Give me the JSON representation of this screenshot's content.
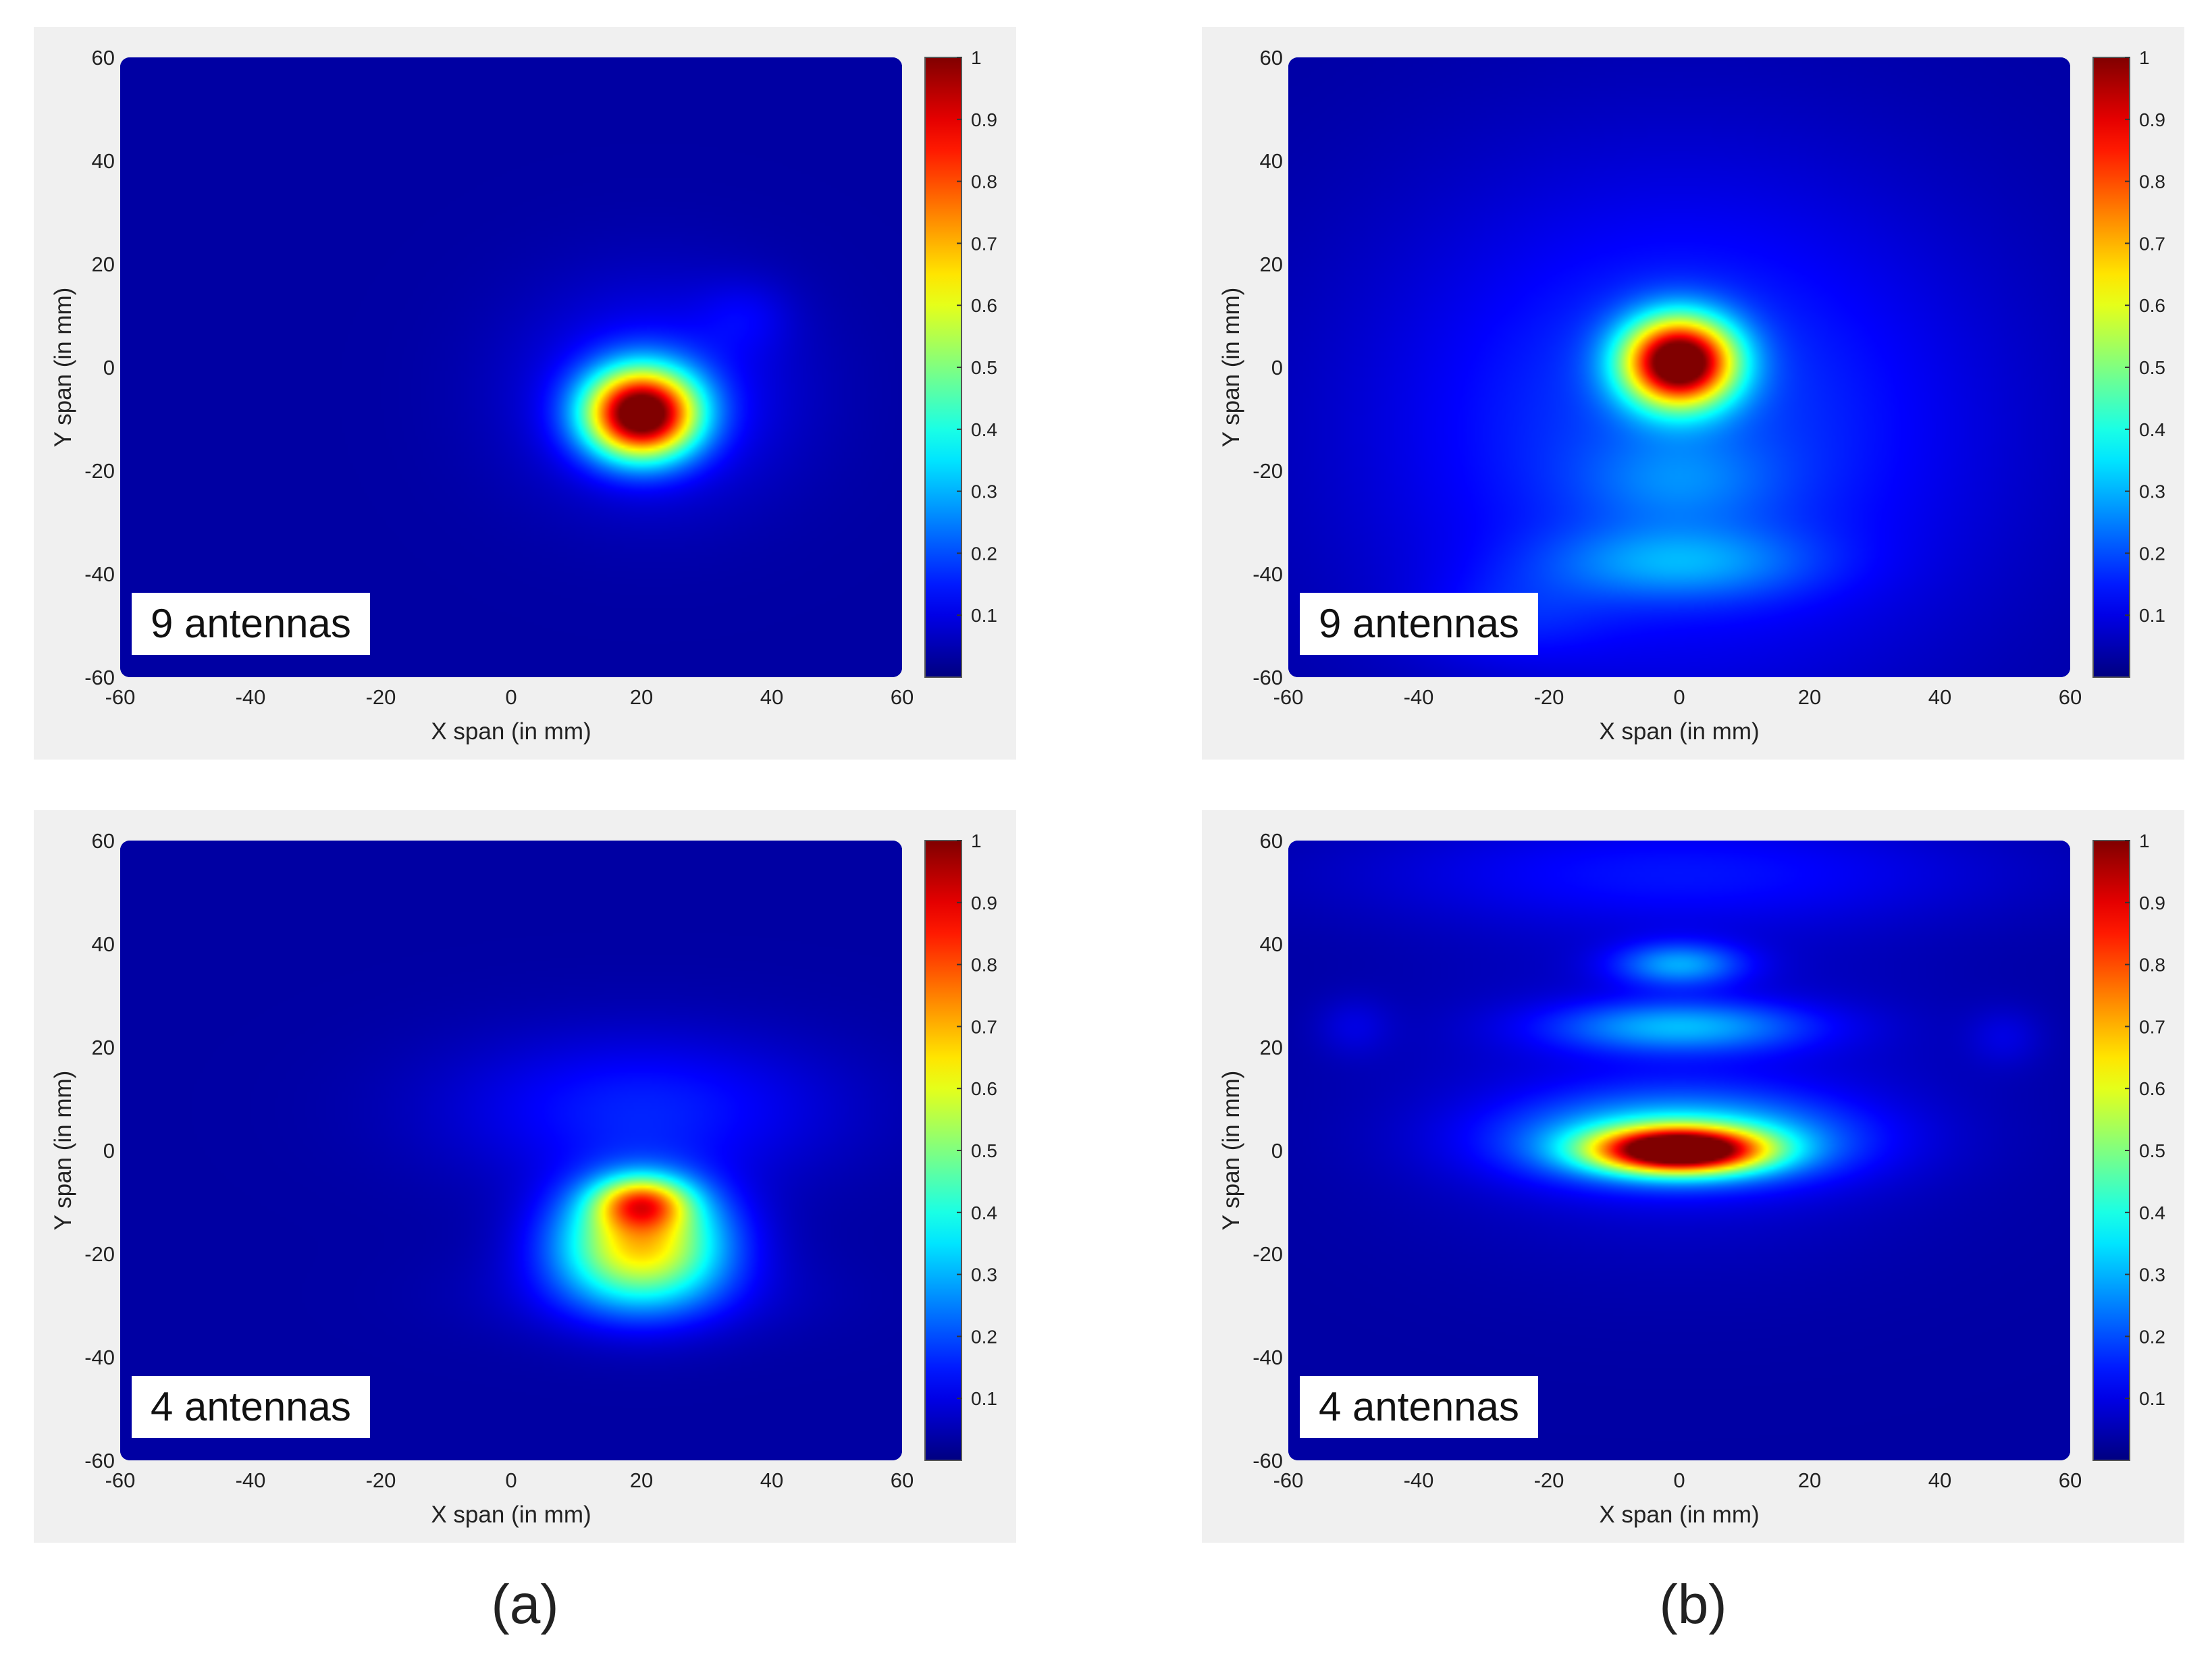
{
  "group_labels": [
    "(a)",
    "(b)"
  ],
  "colorbar": {
    "ticks": [
      0.1,
      0.2,
      0.3,
      0.4,
      0.5,
      0.6,
      0.7,
      0.8,
      0.9,
      1
    ],
    "range": [
      0,
      1
    ],
    "colormap": "jet"
  },
  "chart_data": [
    {
      "type": "heatmap",
      "group": "(a)",
      "annotation": "9 antennas",
      "xlabel": "X span (in mm)",
      "ylabel": "Y span (in mm)",
      "xlim": [
        -60,
        60
      ],
      "ylim": [
        -60,
        60
      ],
      "xticks": [
        -60,
        -40,
        -20,
        0,
        20,
        40,
        60
      ],
      "yticks": [
        -60,
        -40,
        -20,
        0,
        20,
        40,
        60
      ],
      "peak": {
        "x": 20,
        "y": -9,
        "value": 1
      },
      "blobs": [
        {
          "x": 20,
          "y": -9,
          "sx": 6,
          "sy": 6,
          "a": 1.0
        },
        {
          "x": 22,
          "y": -5,
          "sx": 14,
          "sy": 14,
          "a": 0.12
        },
        {
          "x": 36,
          "y": 10,
          "sx": 5,
          "sy": 5,
          "a": 0.05
        }
      ]
    },
    {
      "type": "heatmap",
      "group": "(b)",
      "annotation": "9 antennas",
      "xlabel": "X span (in mm)",
      "ylabel": "Y span (in mm)",
      "xlim": [
        -60,
        60
      ],
      "ylim": [
        -60,
        60
      ],
      "xticks": [
        -60,
        -40,
        -20,
        0,
        20,
        40,
        60
      ],
      "yticks": [
        -60,
        -40,
        -20,
        0,
        20,
        40,
        60
      ],
      "peak": {
        "x": 0,
        "y": 1,
        "value": 1
      },
      "blobs": [
        {
          "x": 0,
          "y": 1,
          "sx": 6,
          "sy": 6,
          "a": 1.0
        },
        {
          "x": 0,
          "y": -12,
          "sx": 32,
          "sy": 34,
          "a": 0.16
        },
        {
          "x": 0,
          "y": -38,
          "sx": 14,
          "sy": 5,
          "a": 0.15
        },
        {
          "x": 0,
          "y": -22,
          "sx": 10,
          "sy": 6,
          "a": 0.08
        },
        {
          "x": -25,
          "y": -48,
          "sx": 10,
          "sy": 6,
          "a": 0.06
        }
      ]
    },
    {
      "type": "heatmap",
      "group": "(a)",
      "annotation": "4 antennas",
      "xlabel": "X span (in mm)",
      "ylabel": "Y span (in mm)",
      "xlim": [
        -60,
        60
      ],
      "ylim": [
        -60,
        60
      ],
      "xticks": [
        -60,
        -40,
        -20,
        0,
        20,
        40,
        60
      ],
      "yticks": [
        -60,
        -40,
        -20,
        0,
        20,
        40,
        60
      ],
      "peak": {
        "x": 20,
        "y": -10,
        "value": 1
      },
      "blobs": [
        {
          "x": 20,
          "y": -10,
          "sx": 5,
          "sy": 3.5,
          "a": 0.45
        },
        {
          "x": 20,
          "y": -18,
          "sx": 9,
          "sy": 8,
          "a": 0.62
        },
        {
          "x": 20,
          "y": 8,
          "sx": 20,
          "sy": 10,
          "a": 0.12
        },
        {
          "x": 20,
          "y": -28,
          "sx": 16,
          "sy": 6,
          "a": 0.06
        }
      ]
    },
    {
      "type": "heatmap",
      "group": "(b)",
      "annotation": "4 antennas",
      "xlabel": "X span (in mm)",
      "ylabel": "Y span (in mm)",
      "xlim": [
        -60,
        60
      ],
      "ylim": [
        -60,
        60
      ],
      "xticks": [
        -60,
        -40,
        -20,
        0,
        20,
        40,
        60
      ],
      "yticks": [
        -60,
        -40,
        -20,
        0,
        20,
        40,
        60
      ],
      "peak": {
        "x": 0,
        "y": 0,
        "value": 1
      },
      "blobs": [
        {
          "x": 0,
          "y": 0,
          "sx": 9,
          "sy": 3,
          "a": 0.95
        },
        {
          "x": 0,
          "y": 2,
          "sx": 18,
          "sy": 6,
          "a": 0.3
        },
        {
          "x": 0,
          "y": 24,
          "sx": 14,
          "sy": 3.5,
          "a": 0.22
        },
        {
          "x": 0,
          "y": 36,
          "sx": 7,
          "sy": 3,
          "a": 0.22
        },
        {
          "x": 0,
          "y": 54,
          "sx": 34,
          "sy": 8,
          "a": 0.1
        },
        {
          "x": 0,
          "y": 10,
          "sx": 28,
          "sy": 20,
          "a": 0.07
        },
        {
          "x": -50,
          "y": 24,
          "sx": 4,
          "sy": 4,
          "a": 0.05
        },
        {
          "x": 50,
          "y": 22,
          "sx": 4,
          "sy": 4,
          "a": 0.05
        }
      ]
    }
  ]
}
